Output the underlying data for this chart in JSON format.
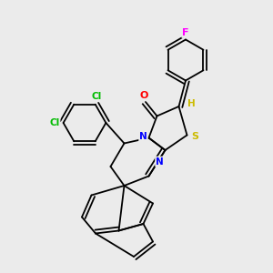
{
  "background_color": "#ebebeb",
  "figsize": [
    3.0,
    3.0
  ],
  "dpi": 100,
  "atom_colors": {
    "F": "#ff00ff",
    "Cl": "#00bb00",
    "O": "#ff0000",
    "N": "#0000ff",
    "S": "#ccbb00",
    "H": "#ccbb00",
    "C": "#000000"
  },
  "bond_color": "#000000",
  "bond_width": 1.3
}
